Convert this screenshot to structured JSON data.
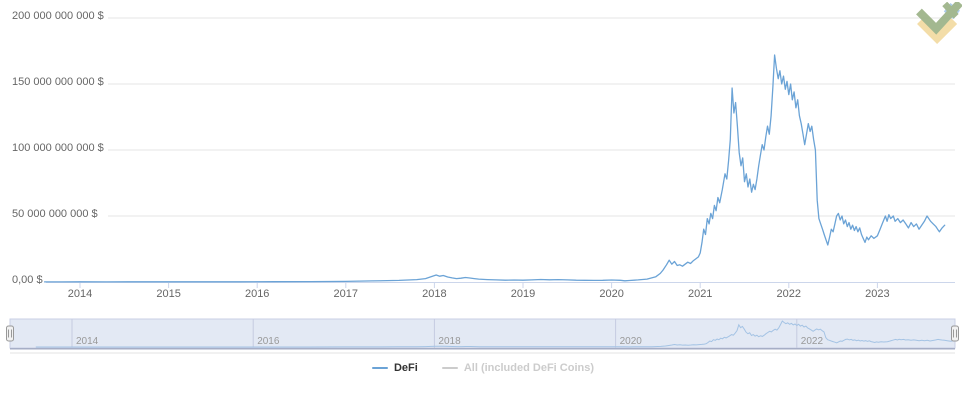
{
  "page": {
    "background": "#ffffff"
  },
  "logo": {
    "name": "litefinance-logo",
    "colors": {
      "green": "#9cb287",
      "blue": "#a6c8e8",
      "yellow": "#f2dba1"
    }
  },
  "legend": {
    "items": [
      {
        "label": "DeFi",
        "color": "#6ba3d6",
        "text_color": "#333333",
        "enabled": true
      },
      {
        "label": "All (included DeFi Coins)",
        "color": "#cccccc",
        "text_color": "#cccccc",
        "enabled": false
      }
    ]
  },
  "chart_data": {
    "type": "line",
    "title": "",
    "xlabel": "",
    "ylabel": "",
    "grid": true,
    "legend_position": "bottom-center",
    "x_unit": "decimal_year",
    "y_unit": "USD billions",
    "ylim": [
      0,
      200000000000
    ],
    "xlim_years": [
      2013.6,
      2023.8
    ],
    "colors": {
      "grid": "#e6e6e6",
      "axis_line": "#ccd6eb",
      "label": "#666666"
    },
    "y_ticks": [
      {
        "value": 0,
        "label": "0,00 $"
      },
      {
        "value": 50000000000,
        "label": "50 000 000 000 $"
      },
      {
        "value": 100000000000,
        "label": "100 000 000 000 $"
      },
      {
        "value": 150000000000,
        "label": "150 000 000 000 $"
      },
      {
        "value": 200000000000,
        "label": "200 000 000 000 $"
      }
    ],
    "x_ticks_main": [
      2014,
      2015,
      2016,
      2017,
      2018,
      2019,
      2020,
      2021,
      2022,
      2023
    ],
    "x_ticks_navigator": [
      2014,
      2016,
      2018,
      2020,
      2022
    ],
    "navigator": {
      "mask_color": "rgba(102,133,194,0.18)",
      "outline_color": "#c9cfe4",
      "grid_color": "#c5cbe1",
      "line_color": "#a4c3e4",
      "label_color": "#999999",
      "selected_range": "full"
    },
    "series": [
      {
        "name": "DeFi",
        "color": "#6ba3d6",
        "visible": true,
        "points": [
          [
            2013.6,
            0.05
          ],
          [
            2013.8,
            0.08
          ],
          [
            2014.0,
            0.12
          ],
          [
            2014.3,
            0.1
          ],
          [
            2014.6,
            0.12
          ],
          [
            2015.0,
            0.15
          ],
          [
            2015.4,
            0.13
          ],
          [
            2015.8,
            0.18
          ],
          [
            2016.2,
            0.22
          ],
          [
            2016.6,
            0.3
          ],
          [
            2017.0,
            0.45
          ],
          [
            2017.3,
            0.8
          ],
          [
            2017.6,
            1.2
          ],
          [
            2017.8,
            1.8
          ],
          [
            2017.9,
            2.6
          ],
          [
            2017.97,
            4.2
          ],
          [
            2018.02,
            5.3
          ],
          [
            2018.06,
            4.4
          ],
          [
            2018.1,
            4.9
          ],
          [
            2018.15,
            3.8
          ],
          [
            2018.2,
            3.1
          ],
          [
            2018.25,
            2.6
          ],
          [
            2018.3,
            2.9
          ],
          [
            2018.35,
            3.4
          ],
          [
            2018.4,
            3.0
          ],
          [
            2018.45,
            2.6
          ],
          [
            2018.5,
            2.2
          ],
          [
            2018.6,
            1.8
          ],
          [
            2018.7,
            1.6
          ],
          [
            2018.8,
            1.4
          ],
          [
            2018.9,
            1.5
          ],
          [
            2019.0,
            1.4
          ],
          [
            2019.1,
            1.6
          ],
          [
            2019.2,
            1.9
          ],
          [
            2019.3,
            1.7
          ],
          [
            2019.4,
            1.8
          ],
          [
            2019.5,
            1.6
          ],
          [
            2019.6,
            1.4
          ],
          [
            2019.7,
            1.3
          ],
          [
            2019.8,
            1.2
          ],
          [
            2019.9,
            1.3
          ],
          [
            2020.0,
            1.5
          ],
          [
            2020.1,
            1.3
          ],
          [
            2020.15,
            0.9
          ],
          [
            2020.2,
            1.1
          ],
          [
            2020.3,
            1.6
          ],
          [
            2020.4,
            2.2
          ],
          [
            2020.5,
            4.0
          ],
          [
            2020.55,
            6.5
          ],
          [
            2020.58,
            9.0
          ],
          [
            2020.62,
            13.0
          ],
          [
            2020.65,
            16.5
          ],
          [
            2020.68,
            13.5
          ],
          [
            2020.71,
            15.5
          ],
          [
            2020.74,
            12.5
          ],
          [
            2020.77,
            13.0
          ],
          [
            2020.8,
            12.0
          ],
          [
            2020.83,
            13.5
          ],
          [
            2020.86,
            15.0
          ],
          [
            2020.89,
            14.0
          ],
          [
            2020.92,
            16.0
          ],
          [
            2020.95,
            17.5
          ],
          [
            2020.98,
            19.0
          ],
          [
            2021.0,
            22
          ],
          [
            2021.02,
            30
          ],
          [
            2021.04,
            40
          ],
          [
            2021.06,
            36
          ],
          [
            2021.08,
            48
          ],
          [
            2021.1,
            44
          ],
          [
            2021.12,
            52
          ],
          [
            2021.14,
            48
          ],
          [
            2021.16,
            58
          ],
          [
            2021.18,
            54
          ],
          [
            2021.2,
            64
          ],
          [
            2021.22,
            60
          ],
          [
            2021.25,
            70
          ],
          [
            2021.28,
            82
          ],
          [
            2021.3,
            78
          ],
          [
            2021.32,
            92
          ],
          [
            2021.34,
            108
          ],
          [
            2021.36,
            147
          ],
          [
            2021.38,
            128
          ],
          [
            2021.4,
            136
          ],
          [
            2021.42,
            118
          ],
          [
            2021.44,
            98
          ],
          [
            2021.46,
            88
          ],
          [
            2021.48,
            94
          ],
          [
            2021.5,
            76
          ],
          [
            2021.52,
            82
          ],
          [
            2021.54,
            72
          ],
          [
            2021.56,
            78
          ],
          [
            2021.58,
            68
          ],
          [
            2021.6,
            74
          ],
          [
            2021.62,
            70
          ],
          [
            2021.64,
            78
          ],
          [
            2021.66,
            88
          ],
          [
            2021.68,
            96
          ],
          [
            2021.7,
            104
          ],
          [
            2021.72,
            100
          ],
          [
            2021.74,
            110
          ],
          [
            2021.76,
            118
          ],
          [
            2021.78,
            112
          ],
          [
            2021.8,
            126
          ],
          [
            2021.82,
            148
          ],
          [
            2021.84,
            172
          ],
          [
            2021.86,
            162
          ],
          [
            2021.88,
            154
          ],
          [
            2021.9,
            160
          ],
          [
            2021.92,
            150
          ],
          [
            2021.94,
            156
          ],
          [
            2021.96,
            146
          ],
          [
            2021.98,
            152
          ],
          [
            2022.0,
            142
          ],
          [
            2022.02,
            150
          ],
          [
            2022.04,
            138
          ],
          [
            2022.06,
            144
          ],
          [
            2022.08,
            132
          ],
          [
            2022.1,
            138
          ],
          [
            2022.12,
            126
          ],
          [
            2022.14,
            120
          ],
          [
            2022.16,
            112
          ],
          [
            2022.18,
            104
          ],
          [
            2022.2,
            112
          ],
          [
            2022.22,
            120
          ],
          [
            2022.24,
            114
          ],
          [
            2022.26,
            118
          ],
          [
            2022.28,
            108
          ],
          [
            2022.3,
            100
          ],
          [
            2022.32,
            62
          ],
          [
            2022.34,
            48
          ],
          [
            2022.36,
            44
          ],
          [
            2022.38,
            40
          ],
          [
            2022.4,
            36
          ],
          [
            2022.42,
            32
          ],
          [
            2022.44,
            28
          ],
          [
            2022.46,
            34
          ],
          [
            2022.48,
            40
          ],
          [
            2022.5,
            38
          ],
          [
            2022.52,
            44
          ],
          [
            2022.54,
            50
          ],
          [
            2022.56,
            52
          ],
          [
            2022.58,
            47
          ],
          [
            2022.6,
            50
          ],
          [
            2022.62,
            44
          ],
          [
            2022.64,
            47
          ],
          [
            2022.66,
            42
          ],
          [
            2022.68,
            45
          ],
          [
            2022.7,
            40
          ],
          [
            2022.72,
            43
          ],
          [
            2022.74,
            39
          ],
          [
            2022.76,
            42
          ],
          [
            2022.78,
            38
          ],
          [
            2022.8,
            41
          ],
          [
            2022.82,
            36
          ],
          [
            2022.84,
            33
          ],
          [
            2022.86,
            30
          ],
          [
            2022.88,
            34
          ],
          [
            2022.9,
            32
          ],
          [
            2022.93,
            35
          ],
          [
            2022.96,
            33
          ],
          [
            2023.0,
            35
          ],
          [
            2023.03,
            40
          ],
          [
            2023.06,
            45
          ],
          [
            2023.09,
            50
          ],
          [
            2023.11,
            46
          ],
          [
            2023.13,
            51
          ],
          [
            2023.15,
            48
          ],
          [
            2023.18,
            50
          ],
          [
            2023.2,
            46
          ],
          [
            2023.23,
            48
          ],
          [
            2023.26,
            45
          ],
          [
            2023.29,
            47
          ],
          [
            2023.32,
            44
          ],
          [
            2023.35,
            41
          ],
          [
            2023.38,
            45
          ],
          [
            2023.41,
            42
          ],
          [
            2023.44,
            44
          ],
          [
            2023.47,
            40
          ],
          [
            2023.5,
            43
          ],
          [
            2023.53,
            46
          ],
          [
            2023.56,
            50
          ],
          [
            2023.58,
            48
          ],
          [
            2023.6,
            46
          ],
          [
            2023.63,
            44
          ],
          [
            2023.66,
            42
          ],
          [
            2023.68,
            40
          ],
          [
            2023.7,
            38
          ],
          [
            2023.73,
            41
          ],
          [
            2023.76,
            43
          ]
        ]
      },
      {
        "name": "All (included DeFi Coins)",
        "color": "#cccccc",
        "visible": false,
        "points": []
      }
    ]
  }
}
